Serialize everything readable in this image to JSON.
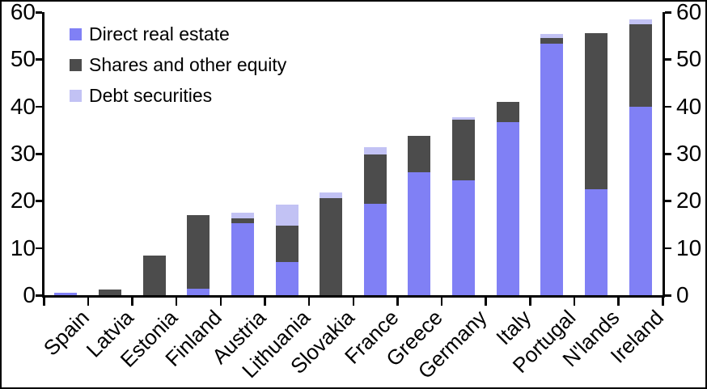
{
  "chart_data": {
    "type": "bar",
    "stacked": true,
    "title": "",
    "xlabel": "",
    "ylabel": "",
    "background": "#FFFFFF",
    "axis_color": "#000000",
    "grid": false,
    "legend_position": "top-left-inside",
    "y_axis_sides": [
      "left",
      "right"
    ],
    "ylim": [
      0,
      60
    ],
    "yticks": [
      0,
      10,
      20,
      30,
      40,
      50,
      60
    ],
    "categories": [
      "Spain",
      "Latvia",
      "Estonia",
      "Finland",
      "Austria",
      "Lithuania",
      "Slovakia",
      "France",
      "Greece",
      "Germany",
      "Italy",
      "Portugal",
      "N'lands",
      "Ireland"
    ],
    "series": [
      {
        "name": "Direct real estate",
        "key": "direct-real-estate",
        "color": "#8080F5",
        "values": [
          0.5,
          0,
          0,
          1.4,
          15.2,
          7.0,
          0,
          19.3,
          26.1,
          24.3,
          36.7,
          53.3,
          22.5,
          40.0
        ]
      },
      {
        "name": "Shares and other equity",
        "key": "shares-and-other-equity",
        "color": "#4C4C4C",
        "values": [
          0,
          1.2,
          8.4,
          15.6,
          1.1,
          7.8,
          20.5,
          10.6,
          7.7,
          12.9,
          4.3,
          1.2,
          33.1,
          17.5
        ]
      },
      {
        "name": "Debt securities",
        "key": "debt-securities",
        "color": "#C2C2F4",
        "values": [
          0,
          0,
          0,
          0,
          1.2,
          4.4,
          1.2,
          1.5,
          0,
          0.5,
          0,
          0.8,
          0,
          1.0
        ]
      }
    ]
  }
}
